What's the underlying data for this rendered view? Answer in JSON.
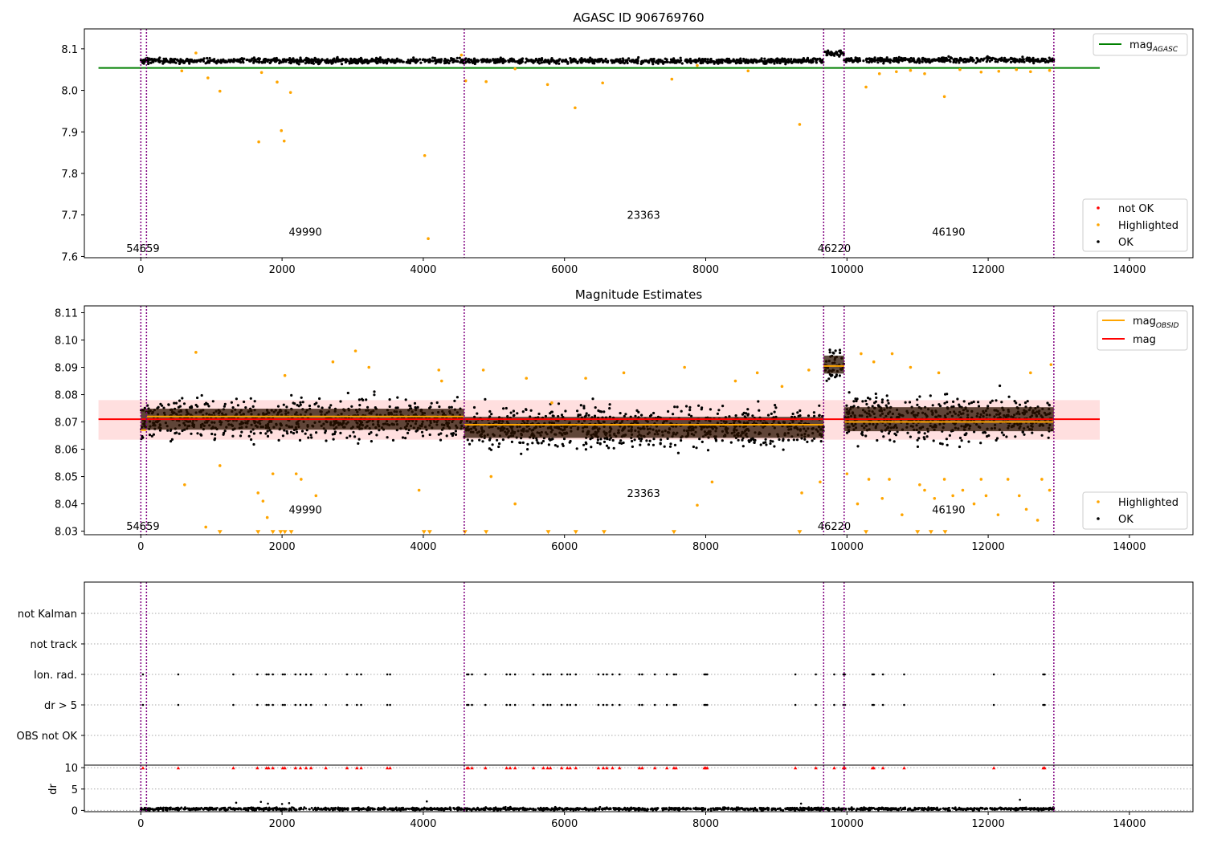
{
  "chart_data": [
    {
      "type": "scatter",
      "title": "AGASC ID 906769760",
      "xlabel": "",
      "ylabel": "",
      "xlim": [
        -800,
        14900
      ],
      "ylim": [
        7.597,
        8.148
      ],
      "xticks": [
        0,
        2000,
        4000,
        6000,
        8000,
        10000,
        12000,
        14000
      ],
      "yticks": [
        7.6,
        7.7,
        7.8,
        7.9,
        8.0,
        8.1
      ],
      "grid": false,
      "obs_boundaries": [
        0,
        80,
        4580,
        9670,
        9960,
        12930
      ],
      "obs_labels": [
        {
          "text": "54659",
          "x": 30,
          "y": 7.62
        },
        {
          "text": "49990",
          "x": 2330,
          "y": 7.66
        },
        {
          "text": "23363",
          "x": 7120,
          "y": 7.7
        },
        {
          "text": "46220",
          "x": 9820,
          "y": 7.62
        },
        {
          "text": "46190",
          "x": 11440,
          "y": 7.66
        }
      ],
      "lines": [
        {
          "name": "mag",
          "name_sub": "AGASC",
          "color": "#008000",
          "x": [
            -600,
            13580
          ],
          "y": [
            8.054,
            8.054
          ]
        }
      ],
      "ok_band": {
        "color": "#000000",
        "segments": [
          {
            "x0": 0,
            "x1": 9670,
            "y": 8.071,
            "spread": 0.006
          },
          {
            "x0": 9670,
            "x1": 9960,
            "y": 8.09,
            "spread": 0.007
          },
          {
            "x0": 9960,
            "x1": 12930,
            "y": 8.073,
            "spread": 0.006
          }
        ]
      },
      "highlighted": {
        "color": "#ffa500",
        "x": [
          580,
          780,
          950,
          1120,
          1670,
          1710,
          1930,
          1990,
          2030,
          2120,
          4020,
          4070,
          4540,
          4600,
          4890,
          5300,
          5760,
          6150,
          6540,
          7520,
          7880,
          8600,
          9330,
          10270,
          10460,
          10700,
          10900,
          11100,
          11380,
          11600,
          11900,
          12150,
          12400,
          12600,
          12870
        ],
        "y": [
          8.047,
          8.09,
          8.03,
          7.998,
          7.876,
          8.043,
          8.02,
          7.903,
          7.878,
          7.995,
          7.843,
          7.643,
          8.085,
          8.023,
          8.021,
          8.052,
          8.014,
          7.958,
          8.018,
          8.027,
          8.06,
          8.047,
          7.918,
          8.008,
          8.04,
          8.045,
          8.048,
          8.04,
          7.985,
          8.05,
          8.044,
          8.046,
          8.05,
          8.045,
          8.048
        ]
      },
      "legend_lines_position": "top-right",
      "legend_points_position": "lower-right",
      "legend_points": [
        {
          "label": "not OK",
          "color": "#ff0000"
        },
        {
          "label": "Highlighted",
          "color": "#ffa500"
        },
        {
          "label": "OK",
          "color": "#000000"
        }
      ]
    },
    {
      "type": "scatter",
      "title": "Magnitude Estimates",
      "xlabel": "",
      "ylabel": "",
      "xlim": [
        -800,
        14900
      ],
      "ylim": [
        8.0287,
        8.1125
      ],
      "xticks": [
        0,
        2000,
        4000,
        6000,
        8000,
        10000,
        12000,
        14000
      ],
      "yticks": [
        8.03,
        8.04,
        8.05,
        8.06,
        8.07,
        8.08,
        8.09,
        8.1,
        8.11
      ],
      "grid": false,
      "obs_boundaries": [
        0,
        80,
        4580,
        9670,
        9960,
        12930
      ],
      "obs_labels": [
        {
          "text": "54659",
          "x": 30,
          "y": 8.032
        },
        {
          "text": "49990",
          "x": 2330,
          "y": 8.038
        },
        {
          "text": "23363",
          "x": 7120,
          "y": 8.044
        },
        {
          "text": "46220",
          "x": 9820,
          "y": 8.032
        },
        {
          "text": "46190",
          "x": 11440,
          "y": 8.038
        }
      ],
      "mag_line": {
        "name": "mag",
        "color": "#ff0000",
        "x": [
          -600,
          13580
        ],
        "y": 8.071,
        "band": [
          8.0635,
          8.078
        ]
      },
      "obsid_lines": {
        "name": "mag",
        "name_sub": "OBSID",
        "color": "#ffa500",
        "segments": [
          {
            "x0": 0,
            "x1": 80,
            "y": 8.067
          },
          {
            "x0": 80,
            "x1": 4580,
            "y": 8.072
          },
          {
            "x0": 4580,
            "x1": 9670,
            "y": 8.069
          },
          {
            "x0": 9670,
            "x1": 9960,
            "y": 8.0905
          },
          {
            "x0": 9960,
            "x1": 12930,
            "y": 8.07
          }
        ]
      },
      "ok_band": {
        "color": "#000000",
        "core_color": "#2b1100",
        "segments": [
          {
            "x0": 0,
            "x1": 4580,
            "y": 8.071,
            "spread": 0.007
          },
          {
            "x0": 4580,
            "x1": 9670,
            "y": 8.068,
            "spread": 0.007
          },
          {
            "x0": 9670,
            "x1": 9960,
            "y": 8.091,
            "spread": 0.006
          },
          {
            "x0": 9960,
            "x1": 12930,
            "y": 8.071,
            "spread": 0.008
          }
        ]
      },
      "highlighted": {
        "color": "#ffa500",
        "x": [
          620,
          780,
          920,
          1120,
          1660,
          1730,
          1790,
          1870,
          2040,
          2200,
          2270,
          2480,
          2720,
          3040,
          3230,
          3940,
          4220,
          4260,
          4850,
          4960,
          5300,
          5460,
          5820,
          6300,
          6840,
          7700,
          7880,
          8090,
          8420,
          8730,
          9080,
          9360,
          9460,
          9620,
          10000,
          10150,
          10200,
          10310,
          10380,
          10500,
          10600,
          10640,
          10780,
          10900,
          11030,
          11100,
          11240,
          11300,
          11380,
          11500,
          11640,
          11800,
          11900,
          11970,
          12140,
          12280,
          12440,
          12540,
          12600,
          12700,
          12760,
          12870,
          12890
        ],
        "y": [
          8.047,
          8.0955,
          8.0315,
          8.054,
          8.044,
          8.041,
          8.035,
          8.051,
          8.087,
          8.051,
          8.049,
          8.043,
          8.092,
          8.096,
          8.09,
          8.045,
          8.089,
          8.085,
          8.089,
          8.05,
          8.04,
          8.086,
          8.077,
          8.086,
          8.088,
          8.09,
          8.0395,
          8.048,
          8.085,
          8.088,
          8.083,
          8.044,
          8.089,
          8.048,
          8.051,
          8.04,
          8.095,
          8.049,
          8.092,
          8.042,
          8.049,
          8.095,
          8.036,
          8.09,
          8.047,
          8.045,
          8.042,
          8.088,
          8.049,
          8.043,
          8.045,
          8.04,
          8.049,
          8.043,
          8.036,
          8.049,
          8.043,
          8.038,
          8.088,
          8.034,
          8.049,
          8.045,
          8.091
        ]
      },
      "below_range_markers": {
        "color": "#ffa500",
        "x": [
          1120,
          1660,
          1870,
          1980,
          2040,
          2130,
          4010,
          4090,
          4590,
          4890,
          5770,
          6160,
          6560,
          7550,
          9330,
          10270,
          11000,
          11190,
          11390
        ],
        "y": 8.0295
      },
      "legend_lines_position": "top-right",
      "legend_points_position": "lower-right",
      "legend_points": [
        {
          "label": "Highlighted",
          "color": "#ffa500"
        },
        {
          "label": "OK",
          "color": "#000000"
        }
      ]
    },
    {
      "type": "scatter",
      "title": "",
      "xlabel": "",
      "ylabel": "",
      "xlim": [
        -800,
        14900
      ],
      "categories": [
        "not Kalman",
        "not track",
        "Ion. rad.",
        "dr > 5",
        "OBS not OK"
      ],
      "obs_boundaries": [
        0,
        80,
        4580,
        9670,
        9960,
        12930
      ],
      "grid": "dotted-horizontal",
      "flags": {
        "ion_rad": [
          30,
          530,
          1310,
          1650,
          1780,
          1810,
          1870,
          2010,
          2040,
          2190,
          2260,
          2340,
          2410,
          2620,
          2920,
          3060,
          3120,
          3490,
          3530,
          4620,
          4640,
          4690,
          4880,
          5180,
          5230,
          5300,
          5560,
          5700,
          5760,
          5800,
          5960,
          6040,
          6080,
          6160,
          6480,
          6550,
          6600,
          6680,
          6780,
          7060,
          7100,
          7280,
          7450,
          7550,
          7580,
          7980,
          8000,
          8020,
          9270,
          9560,
          9820,
          9950,
          9970,
          10360,
          10380,
          10510,
          10810,
          12080,
          12780,
          12800
        ],
        "dr_gt_5": [
          30,
          530,
          1310,
          1650,
          1780,
          1810,
          1870,
          2010,
          2040,
          2190,
          2260,
          2340,
          2410,
          2620,
          2920,
          3060,
          3120,
          3490,
          3530,
          4620,
          4640,
          4690,
          4880,
          5180,
          5230,
          5300,
          5560,
          5700,
          5760,
          5800,
          5960,
          6040,
          6080,
          6160,
          6480,
          6550,
          6600,
          6680,
          6780,
          7060,
          7100,
          7280,
          7450,
          7550,
          7580,
          7980,
          8000,
          8020,
          9270,
          9560,
          9820,
          9950,
          9970,
          10360,
          10380,
          10510,
          10810,
          12080,
          12780,
          12800
        ]
      }
    },
    {
      "type": "scatter",
      "title": "",
      "xlabel": "",
      "ylabel": "dr",
      "xlim": [
        -800,
        14900
      ],
      "ylim": [
        -0.3,
        10.6
      ],
      "xticks": [
        0,
        2000,
        4000,
        6000,
        8000,
        10000,
        12000,
        14000
      ],
      "yticks": [
        0,
        5,
        10
      ],
      "grid": "dotted-horizontal",
      "obs_boundaries": [
        0,
        80,
        4580,
        9670,
        9960,
        12930
      ],
      "clipped_markers": {
        "color": "#ff0000",
        "y": 10,
        "x": [
          30,
          530,
          1310,
          1650,
          1780,
          1810,
          1870,
          2010,
          2040,
          2190,
          2260,
          2340,
          2410,
          2620,
          2920,
          3060,
          3120,
          3490,
          3530,
          4620,
          4640,
          4690,
          4880,
          5180,
          5230,
          5300,
          5560,
          5700,
          5760,
          5800,
          5960,
          6040,
          6080,
          6160,
          6480,
          6550,
          6600,
          6680,
          6780,
          7060,
          7100,
          7280,
          7450,
          7550,
          7580,
          7980,
          8000,
          8020,
          9270,
          9560,
          9820,
          9950,
          9970,
          10360,
          10380,
          10510,
          10810,
          12080,
          12780,
          12800
        ]
      },
      "ok_band": {
        "color": "#000000",
        "x0": 0,
        "x1": 12930,
        "y": 0.35,
        "spread": 0.35
      },
      "outliers": {
        "x": [
          1350,
          1700,
          1800,
          2000,
          2100,
          4050,
          9350,
          12450
        ],
        "y": [
          1.8,
          2.0,
          1.6,
          1.5,
          1.7,
          2.1,
          1.6,
          2.5
        ]
      }
    }
  ]
}
